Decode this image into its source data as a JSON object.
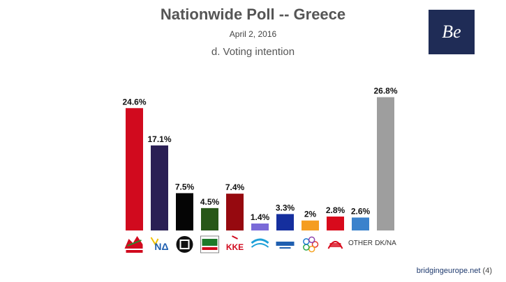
{
  "title": "Nationwide Poll -- Greece",
  "date": "April 2, 2016",
  "subtitle": "d. Voting intention",
  "logo_text": "Be",
  "footer": {
    "site": "bridgingeurope.net",
    "page": "(4)"
  },
  "chart_data": {
    "type": "bar",
    "title": "Nationwide Poll -- Greece",
    "subtitle": "d. Voting intention",
    "categories": [
      "ΣΥΡΙΖΑ",
      "ΝΔ",
      "Golden Dawn",
      "ΠΑΣΟΚ",
      "ΚΚΕ",
      "Potami",
      "ΑΝΕΛ",
      "Enosi Kentroon",
      "Laiki Enotita",
      "OTHER",
      "DK/NA"
    ],
    "values": [
      24.6,
      17.1,
      7.5,
      4.5,
      7.4,
      1.4,
      3.3,
      2,
      2.8,
      2.6,
      26.8
    ],
    "value_labels": [
      "24.6%",
      "17.1%",
      "7.5%",
      "4.5%",
      "7.4%",
      "1.4%",
      "3.3%",
      "2%",
      "2.8%",
      "2.6%",
      "26.8%"
    ],
    "colors": [
      "#d10a1e",
      "#2a1f54",
      "#050505",
      "#285718",
      "#96090f",
      "#7a6ad8",
      "#152f9e",
      "#f59d20",
      "#d80a1c",
      "#3b82cc",
      "#9e9e9e"
    ],
    "icons": [
      "syriza-logo",
      "nd-logo",
      "golden-dawn-logo",
      "pasok-logo",
      "kke-logo",
      "potami-logo",
      "anel-logo",
      "enosi-kentroon-logo",
      "laiki-enotita-logo",
      "other-text",
      "dkna-text"
    ],
    "text_category_labels": [
      "OTHER",
      "DK/NA"
    ],
    "ylim": [
      0,
      28
    ],
    "grid": false,
    "legend": "none"
  }
}
